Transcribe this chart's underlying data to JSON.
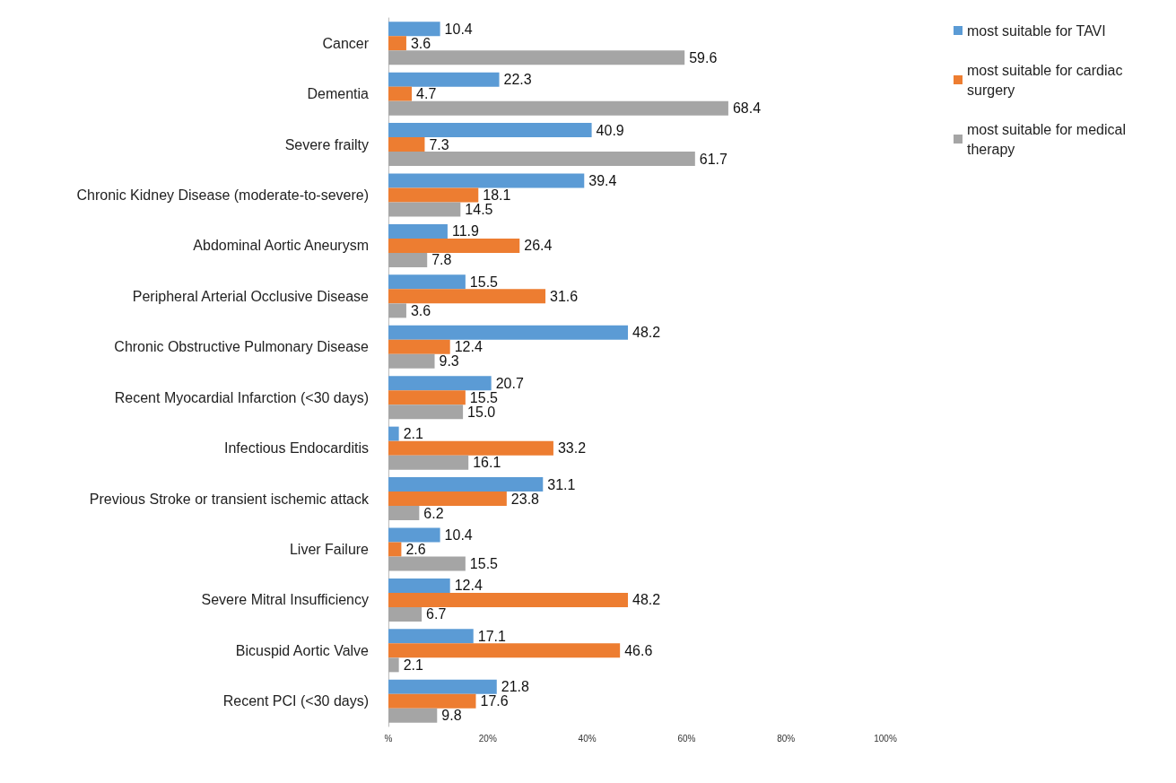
{
  "chart_data": {
    "type": "bar",
    "orientation": "horizontal",
    "categories": [
      "Cancer",
      "Dementia",
      "Severe frailty",
      "Chronic Kidney Disease (moderate-to-severe)",
      "Abdominal Aortic Aneurysm",
      "Peripheral Arterial Occlusive Disease",
      "Chronic Obstructive Pulmonary Disease",
      "Recent Myocardial Infarction (<30 days)",
      "Infectious Endocarditis",
      "Previous Stroke or transient ischemic attack",
      "Liver Failure",
      "Severe Mitral Insufficiency",
      "Bicuspid Aortic Valve",
      "Recent PCI (<30 days)"
    ],
    "series": [
      {
        "name": "most suitable for TAVI",
        "color": "#5b9bd5",
        "values": [
          10.4,
          22.3,
          40.9,
          39.4,
          11.9,
          15.5,
          48.2,
          20.7,
          2.1,
          31.1,
          10.4,
          12.4,
          17.1,
          21.8
        ],
        "value_labels": [
          "10.4",
          "22.3",
          "40.9",
          "39.4",
          "11.9",
          "15.5",
          "48.2",
          "20.7",
          "2.1",
          "31.1",
          "10.4",
          "12.4",
          "17.1",
          "21.8"
        ]
      },
      {
        "name": "most suitable for cardiac surgery",
        "color": "#ed7d31",
        "values": [
          3.6,
          4.7,
          7.3,
          18.1,
          26.4,
          31.6,
          12.4,
          15.5,
          33.2,
          23.8,
          2.6,
          48.2,
          46.6,
          17.6
        ],
        "value_labels": [
          "3.6",
          "4.7",
          "7.3",
          "18.1",
          "26.4",
          "31.6",
          "12.4",
          "15.5",
          "33.2",
          "23.8",
          "2.6",
          "48.2",
          "46.6",
          "17.6"
        ]
      },
      {
        "name": "most suitable for medical therapy",
        "color": "#a5a5a5",
        "values": [
          59.6,
          68.4,
          61.7,
          14.5,
          7.8,
          3.6,
          9.3,
          15.0,
          16.1,
          6.2,
          15.5,
          6.7,
          2.1,
          9.8
        ],
        "value_labels": [
          "59.6",
          "68.4",
          "61.7",
          "14.5",
          "7.8",
          "3.6",
          "9.3",
          "15.0",
          "16.1",
          "6.2",
          "15.5",
          "6.7",
          "2.1",
          "9.8"
        ]
      }
    ],
    "xlim": [
      0,
      100
    ],
    "xticks": [
      {
        "value": 0,
        "label": "%"
      },
      {
        "value": 20,
        "label": "20%"
      },
      {
        "value": 40,
        "label": "40%"
      },
      {
        "value": 60,
        "label": "60%"
      },
      {
        "value": 80,
        "label": "80%"
      },
      {
        "value": 100,
        "label": "100%"
      }
    ],
    "grid": false,
    "legend": "top right"
  }
}
